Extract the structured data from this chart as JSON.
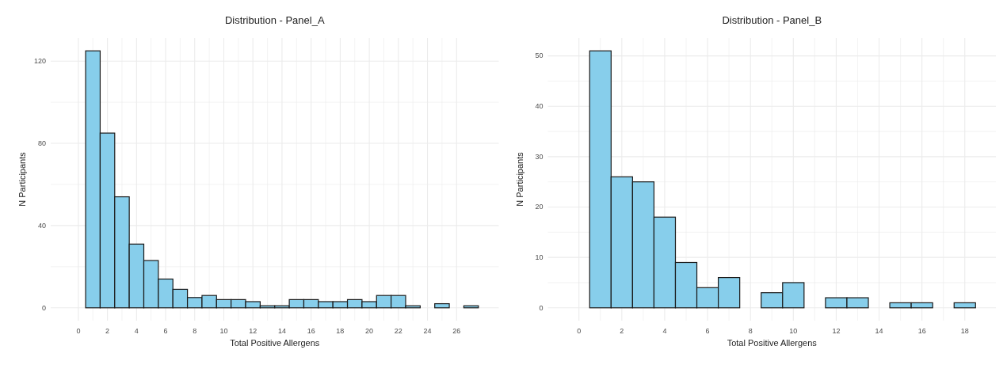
{
  "chart_data": [
    {
      "type": "histogram",
      "title": "Distribution - Panel_A",
      "xlabel": "Total Positive Allergens",
      "ylabel": "N Participants",
      "color": "#87ceeb",
      "grid": true,
      "bins": [
        -0.5,
        0.5,
        1.5,
        2.5,
        3.5,
        4.5,
        5.5,
        6.5,
        7.5,
        8.5,
        9.5,
        10.5,
        11.5,
        12.5,
        13.5,
        14.5,
        15.5,
        16.5,
        17.5,
        18.5,
        19.5,
        20.5,
        21.5,
        22.5,
        23.5,
        24.5,
        25.5,
        26.5,
        27.5
      ],
      "values": [
        0,
        125,
        85,
        54,
        31,
        23,
        14,
        9,
        5,
        6,
        4,
        4,
        3,
        1,
        1,
        4,
        4,
        3,
        3,
        4,
        3,
        6,
        6,
        1,
        0,
        2,
        0,
        1
      ],
      "xlim": [
        -1.9,
        28.9
      ],
      "xticks": [
        0,
        2,
        4,
        6,
        8,
        10,
        12,
        14,
        16,
        18,
        20,
        22,
        24,
        26
      ],
      "ylim": [
        -6.25,
        131.25
      ],
      "yticks": [
        0,
        40,
        80,
        120
      ]
    },
    {
      "type": "histogram",
      "title": "Distribution - Panel_B",
      "xlabel": "Total Positive Allergens",
      "ylabel": "N Participants",
      "color": "#87ceeb",
      "grid": true,
      "bins": [
        -0.5,
        0.5,
        1.5,
        2.5,
        3.5,
        4.5,
        5.5,
        6.5,
        7.5,
        8.5,
        9.5,
        10.5,
        11.5,
        12.5,
        13.5,
        14.5,
        15.5,
        16.5,
        17.5,
        18.5
      ],
      "values": [
        0,
        51,
        26,
        25,
        18,
        9,
        4,
        6,
        0,
        3,
        5,
        0,
        2,
        2,
        0,
        1,
        1,
        0,
        1
      ],
      "xlim": [
        -1.45,
        19.45
      ],
      "xticks": [
        0,
        2,
        4,
        6,
        8,
        10,
        12,
        14,
        16,
        18
      ],
      "ylim": [
        -2.55,
        53.55
      ],
      "yticks": [
        0,
        10,
        20,
        30,
        40,
        50
      ]
    }
  ]
}
